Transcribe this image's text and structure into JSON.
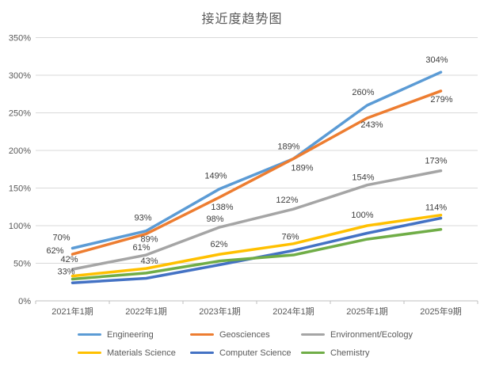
{
  "chart_data": {
    "type": "line",
    "title": "接近度趋势图",
    "categories": [
      "2021年1期",
      "2022年1期",
      "2023年1期",
      "2024年1期",
      "2025年1期",
      "2025年9期"
    ],
    "y_tick_labels": [
      "0%",
      "50%",
      "100%",
      "150%",
      "200%",
      "250%",
      "300%",
      "350%"
    ],
    "ylim": [
      0,
      350
    ],
    "grid": true,
    "legend_position": "bottom",
    "series": [
      {
        "name": "Engineering",
        "color": "#5B9BD5",
        "values": [
          70,
          93,
          149,
          189,
          260,
          304
        ],
        "labels": [
          "70%",
          "93%",
          "149%",
          "189%",
          "260%",
          "304%"
        ]
      },
      {
        "name": "Geosciences",
        "color": "#ED7D31",
        "values": [
          62,
          89,
          138,
          189,
          243,
          279
        ],
        "labels": [
          "62%",
          "89%",
          "138%",
          "189%",
          "243%",
          "279%"
        ]
      },
      {
        "name": "Environment/Ecology",
        "color": "#A5A5A5",
        "values": [
          42,
          61,
          98,
          122,
          154,
          173
        ],
        "labels": [
          "42%",
          "61%",
          "98%",
          "122%",
          "154%",
          "173%"
        ]
      },
      {
        "name": "Materials Science",
        "color": "#FFC000",
        "values": [
          33,
          43,
          62,
          76,
          100,
          114
        ],
        "labels": [
          "33%",
          "43%",
          "62%",
          "76%",
          "100%",
          "114%"
        ]
      },
      {
        "name": "Computer Science",
        "color": "#4472C4",
        "values": [
          24,
          30,
          48,
          67,
          90,
          110
        ],
        "labels": null
      },
      {
        "name": "Chemistry",
        "color": "#70AD47",
        "values": [
          29,
          37,
          53,
          61,
          82,
          95
        ],
        "labels": null
      }
    ]
  }
}
